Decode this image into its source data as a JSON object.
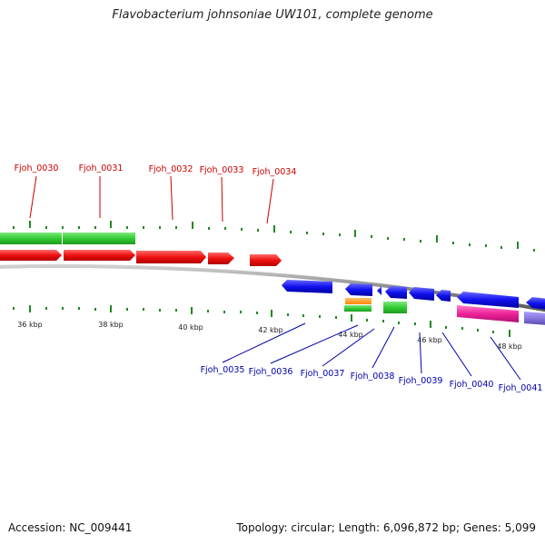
{
  "title": "Flavobacterium johnsoniae UW101, complete genome",
  "accession": "Accession: NC_009441",
  "summary": "Topology: circular; Length: 6,096,872 bp; Genes: 5,099",
  "colors": {
    "forward_label": "#cc0000",
    "reverse_label": "#0000aa",
    "backbone": "#888888",
    "tick": "#228822"
  },
  "kbp_labels": [
    "36 kbp",
    "38 kbp",
    "40 kbp",
    "42 kbp",
    "44 kbp",
    "46 kbp",
    "48 kbp"
  ],
  "forward_genes": [
    "Fjoh_0030",
    "Fjoh_0031",
    "Fjoh_0032",
    "Fjoh_0033",
    "Fjoh_0034"
  ],
  "reverse_genes": [
    "Fjoh_0035",
    "Fjoh_0036",
    "Fjoh_0037",
    "Fjoh_0038",
    "Fjoh_0039",
    "Fjoh_0040",
    "Fjoh_0041"
  ]
}
